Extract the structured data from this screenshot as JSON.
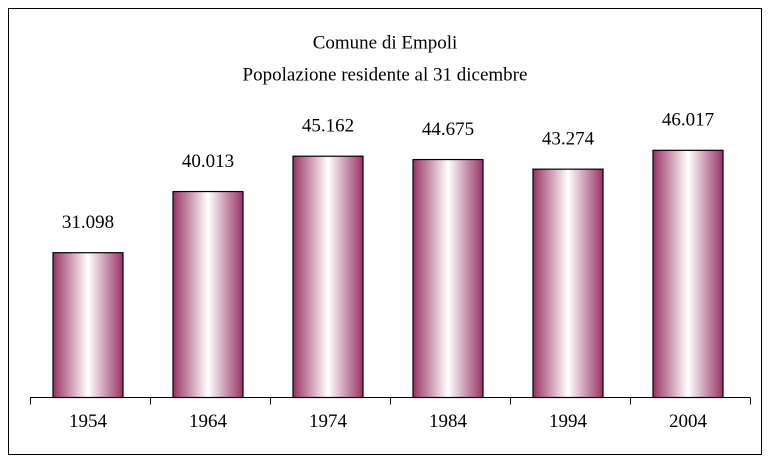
{
  "chart_data": {
    "type": "bar",
    "title": "Comune di Empoli",
    "subtitle": "Popolazione residente al 31 dicembre",
    "categories": [
      "1954",
      "1964",
      "1974",
      "1984",
      "1994",
      "2004"
    ],
    "values": [
      31098,
      40013,
      45162,
      44675,
      43274,
      46017
    ],
    "value_labels": [
      "31.098",
      "40.013",
      "45.162",
      "44.675",
      "43.274",
      "46.017"
    ],
    "color": "#993366",
    "ylim": [
      10000,
      50000
    ],
    "grid": false
  }
}
